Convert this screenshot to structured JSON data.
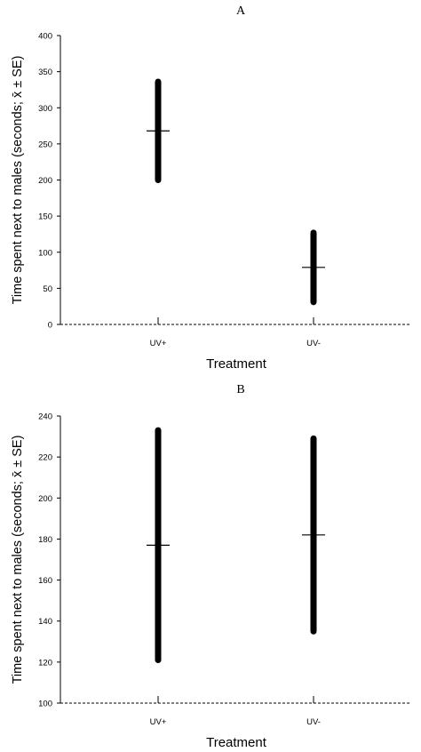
{
  "chart_data": [
    {
      "type": "errorbar",
      "panel_label": "A",
      "xlabel": "Treatment",
      "ylabel": "Time spent  next to males (seconds; x̄ ± SE)",
      "categories": [
        "UV+",
        "UV-"
      ],
      "means": [
        268,
        79
      ],
      "lower": [
        200,
        31
      ],
      "upper": [
        336,
        127
      ],
      "ylim": [
        0,
        400
      ],
      "yticks": [
        0,
        50,
        100,
        150,
        200,
        250,
        300,
        350,
        400
      ],
      "grid": false
    },
    {
      "type": "errorbar",
      "panel_label": "B",
      "xlabel": "Treatment",
      "ylabel": "Time spent  next to males (seconds; x̄ ± SE)",
      "categories": [
        "UV+",
        "UV-"
      ],
      "means": [
        177,
        182
      ],
      "lower": [
        121,
        135
      ],
      "upper": [
        233,
        229
      ],
      "ylim": [
        100,
        240
      ],
      "yticks": [
        100,
        120,
        140,
        160,
        180,
        200,
        220,
        240
      ],
      "grid": false
    }
  ],
  "style": {
    "bar_color": "#000000",
    "axis_color": "#000000",
    "background": "#ffffff"
  }
}
